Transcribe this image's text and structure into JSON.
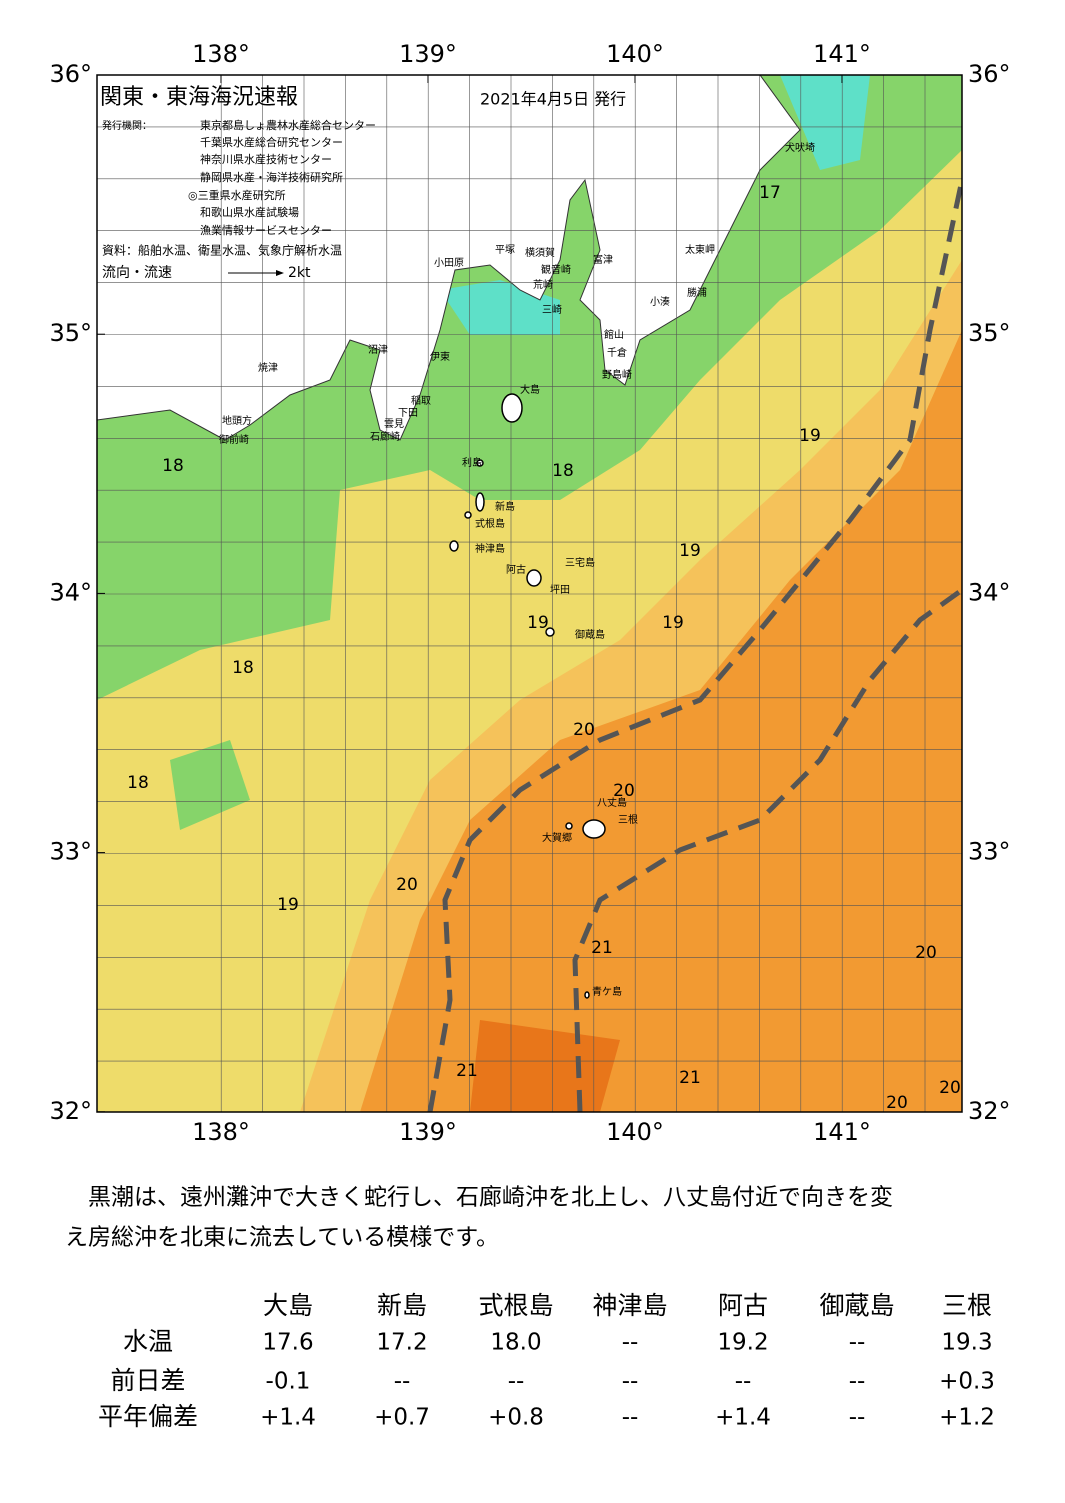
{
  "header": {
    "title": "関東・東海海況速報",
    "date": "2021年4月5日 発行",
    "issuer_label": "発行機関：",
    "issuers": [
      "東京都島しょ農林水産総合センター",
      "千葉県水産総合研究センター",
      "神奈川県水産技術センター",
      "静岡県水産・海洋技術研究所",
      "◎三重県水産研究所",
      "和歌山県水産試験場",
      "漁業情報サービスセンター"
    ],
    "source": "資料：船舶水温、衛星水温、気象庁解析水温",
    "flow_label": "流向・流速",
    "flow_scale": "2kt"
  },
  "map": {
    "lon_ticks": [
      {
        "value": 138,
        "label": "138°"
      },
      {
        "value": 139,
        "label": "139°"
      },
      {
        "value": 140,
        "label": "140°"
      },
      {
        "value": 141,
        "label": "141°"
      }
    ],
    "lat_ticks": [
      {
        "value": 36,
        "label": "36°"
      },
      {
        "value": 35,
        "label": "35°"
      },
      {
        "value": 34,
        "label": "34°"
      },
      {
        "value": 33,
        "label": "33°"
      },
      {
        "value": 32,
        "label": "32°"
      }
    ],
    "places": [
      "犬吠埼",
      "太東岬",
      "勝浦",
      "小湊",
      "富津",
      "横須賀",
      "観音崎",
      "荒崎",
      "三崎",
      "平塚",
      "小田原",
      "館山",
      "千倉",
      "野島崎",
      "沼津",
      "伊東",
      "焼津",
      "大島",
      "稲取",
      "下田",
      "雲見",
      "石廊崎",
      "地頭方",
      "御前崎",
      "利島",
      "新島",
      "式根島",
      "神津島",
      "三宅島",
      "阿古",
      "坪田",
      "御蔵島",
      "八丈島",
      "三根",
      "大賀郷",
      "青ケ島"
    ],
    "isotherm_labels": [
      "17",
      "19",
      "18",
      "18",
      "19",
      "19",
      "19",
      "18",
      "20",
      "18",
      "20",
      "20",
      "19",
      "21",
      "20",
      "21",
      "21",
      "20",
      "20"
    ]
  },
  "summary": [
    "　黒潮は、遠州灘沖で大きく蛇行し、石廊崎沖を北上し、八丈島付近で向きを変",
    "え房総沖を北東に流去している模様です。"
  ],
  "table": {
    "columns": [
      "大島",
      "新島",
      "式根島",
      "神津島",
      "阿古",
      "御蔵島",
      "三根"
    ],
    "rows": [
      {
        "label": "水温",
        "values": [
          "17.6",
          "17.2",
          "18.0",
          "--",
          "19.2",
          "--",
          "19.3"
        ]
      },
      {
        "label": "前日差",
        "values": [
          "-0.1",
          "--",
          "--",
          "--",
          "--",
          "--",
          "+0.3"
        ]
      },
      {
        "label": "平年偏差",
        "values": [
          "+1.4",
          "+0.7",
          "+0.8",
          "--",
          "+1.4",
          "--",
          "+1.2"
        ]
      }
    ]
  }
}
